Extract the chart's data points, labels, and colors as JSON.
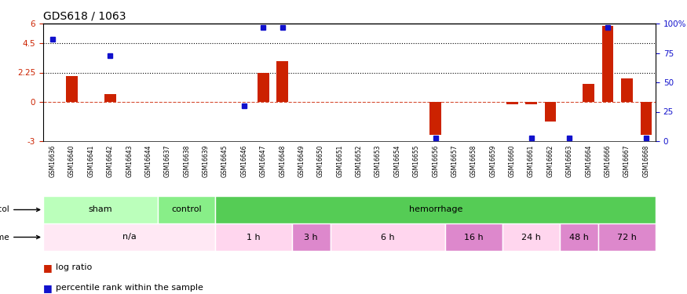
{
  "title": "GDS618 / 1063",
  "samples": [
    "GSM16636",
    "GSM16640",
    "GSM16641",
    "GSM16642",
    "GSM16643",
    "GSM16644",
    "GSM16637",
    "GSM16638",
    "GSM16639",
    "GSM16645",
    "GSM16646",
    "GSM16647",
    "GSM16648",
    "GSM16649",
    "GSM16650",
    "GSM16651",
    "GSM16652",
    "GSM16653",
    "GSM16654",
    "GSM16655",
    "GSM16656",
    "GSM16657",
    "GSM16658",
    "GSM16659",
    "GSM16660",
    "GSM16661",
    "GSM16662",
    "GSM16663",
    "GSM16664",
    "GSM16666",
    "GSM16667",
    "GSM16668"
  ],
  "log_ratio": [
    0.0,
    2.0,
    0.0,
    0.6,
    0.0,
    0.0,
    0.0,
    0.0,
    0.0,
    0.0,
    0.0,
    2.25,
    3.1,
    0.0,
    0.0,
    0.0,
    0.0,
    0.0,
    0.0,
    0.0,
    -2.5,
    0.0,
    0.0,
    0.0,
    -0.2,
    -0.15,
    -1.5,
    0.0,
    1.4,
    5.8,
    1.8,
    -2.5
  ],
  "percentile": [
    87,
    null,
    null,
    73,
    null,
    null,
    null,
    null,
    null,
    null,
    30,
    97,
    97,
    null,
    null,
    null,
    null,
    null,
    null,
    null,
    3,
    null,
    null,
    null,
    null,
    3,
    null,
    3,
    null,
    97,
    null,
    3
  ],
  "protocol_groups": [
    {
      "label": "sham",
      "start": 0,
      "end": 5,
      "color": "#BBFFBB"
    },
    {
      "label": "control",
      "start": 6,
      "end": 8,
      "color": "#88EE88"
    },
    {
      "label": "hemorrhage",
      "start": 9,
      "end": 31,
      "color": "#55DD55"
    }
  ],
  "time_groups": [
    {
      "label": "n/a",
      "start": 0,
      "end": 8,
      "color": "#FFE0EE"
    },
    {
      "label": "1 h",
      "start": 9,
      "end": 12,
      "color": "#FFD0EE"
    },
    {
      "label": "3 h",
      "start": 13,
      "end": 14,
      "color": "#EE99DD"
    },
    {
      "label": "6 h",
      "start": 15,
      "end": 20,
      "color": "#FFD0EE"
    },
    {
      "label": "16 h",
      "start": 21,
      "end": 23,
      "color": "#EE99DD"
    },
    {
      "label": "24 h",
      "start": 24,
      "end": 26,
      "color": "#FFD0EE"
    },
    {
      "label": "48 h",
      "start": 27,
      "end": 28,
      "color": "#EE99DD"
    },
    {
      "label": "72 h",
      "start": 29,
      "end": 31,
      "color": "#EE99DD"
    }
  ],
  "ylim_left": [
    -3,
    6
  ],
  "ylim_right": [
    0,
    100
  ],
  "yticks_left": [
    -3,
    0,
    2.25,
    4.5,
    6
  ],
  "ytick_labels_left": [
    "-3",
    "0",
    "2.25",
    "4.5",
    "6"
  ],
  "yticks_right": [
    0,
    25,
    50,
    75,
    100
  ],
  "ytick_labels_right": [
    "0",
    "25",
    "50",
    "75",
    "100%"
  ],
  "hlines_dotted": [
    4.5,
    2.25
  ],
  "hline_zero": 0.0,
  "bar_color": "#CC2200",
  "dot_color": "#1111CC",
  "title_fontsize": 10,
  "tick_fontsize": 7.5,
  "sample_fontsize": 5.5,
  "protocol_label_fontsize": 8,
  "time_label_fontsize": 8,
  "legend_fontsize": 8,
  "background_color": "#FFFFFF"
}
